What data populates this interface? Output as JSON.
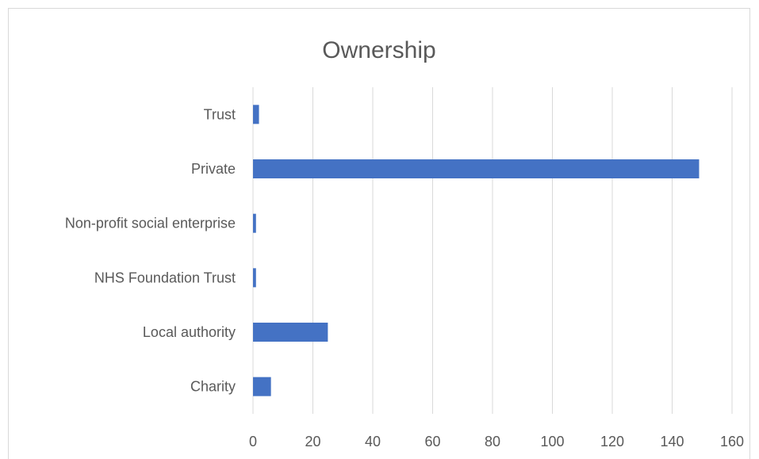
{
  "chart_data": {
    "type": "bar",
    "orientation": "horizontal",
    "title": "Ownership",
    "categories": [
      "Charity",
      "Local authority",
      "NHS Foundation Trust",
      "Non-profit social enterprise",
      "Private",
      "Trust"
    ],
    "values": [
      6,
      25,
      1,
      1,
      149,
      2
    ],
    "xlim": [
      0,
      160
    ],
    "xticks": [
      "0",
      "20",
      "40",
      "60",
      "80",
      "100",
      "120",
      "140",
      "160"
    ],
    "grid": true,
    "legend": "none",
    "bar_color": "#4472c4",
    "grid_color": "#d9d9d9",
    "text_color": "#595959"
  }
}
